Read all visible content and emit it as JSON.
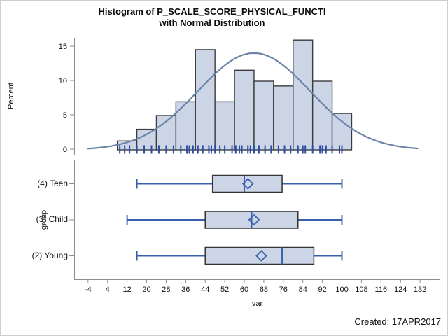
{
  "title": {
    "line1": "Histogram of P_SCALE_SCORE_PHYSICAL_FUNCTI",
    "line2": "with Normal Distribution"
  },
  "footer": {
    "created": "Created: 17APR2017"
  },
  "axis_labels": {
    "histogram_y": "Percent",
    "boxplot_y": "group",
    "shared_x": "var"
  },
  "colors": {
    "bar_fill": "#ccd5e6",
    "bar_stroke": "#3b3b3b",
    "curve": "#6b84a8",
    "box_line": "#3a5fae",
    "box_stroke": "#333333",
    "rug": "#2b4ba6",
    "panel_border": "#8e8e8e",
    "tick": "#8e8e8e",
    "text": "#111111",
    "figure_border": "#cfcfcf"
  },
  "chart_data": [
    {
      "type": "bar",
      "subtype": "histogram-with-normal-curve",
      "title": "Histogram of P_SCALE_SCORE_PHYSICAL_FUNCTI with Normal Distribution",
      "xlabel": "var",
      "ylabel": "Percent",
      "bin_width": 8,
      "bin_midpoints": [
        12,
        20,
        28,
        36,
        44,
        52,
        60,
        68,
        76,
        84,
        92,
        100
      ],
      "values_percent": [
        1.3,
        3.0,
        5.0,
        7.0,
        14.6,
        7.0,
        11.6,
        10.0,
        9.3,
        16.0,
        10.0,
        5.3
      ],
      "yticks": [
        0,
        5,
        10,
        15
      ],
      "ylim": [
        0,
        16.2
      ],
      "xticks": [
        -4,
        4,
        12,
        20,
        28,
        36,
        44,
        52,
        60,
        68,
        76,
        84,
        92,
        100,
        108,
        116,
        124,
        132
      ],
      "xlim": [
        -9.4,
        140
      ],
      "grid": false,
      "legend": "none",
      "normal_curve": {
        "mean": 64,
        "sigma": 23,
        "peak_percent": 14.1,
        "range": [
          -4,
          132
        ]
      },
      "rug_values": [
        9,
        11,
        13,
        16,
        19,
        22,
        25,
        28,
        31,
        34,
        36.5,
        37.5,
        39,
        41,
        43,
        45.5,
        46.5,
        48,
        50,
        52,
        55,
        56.5,
        58,
        59,
        61.5,
        62.5,
        64,
        66,
        68.5,
        71,
        74,
        76.5,
        79,
        82,
        84,
        85,
        88,
        91,
        92,
        93.5,
        96,
        99,
        100
      ]
    },
    {
      "type": "boxplot",
      "orientation": "horizontal",
      "ylabel": "group",
      "xlabel": "var",
      "xlim": [
        -9.4,
        140
      ],
      "groups": [
        {
          "label": "(4) Teen",
          "min": 16,
          "q1": 47,
          "median": 60,
          "mean": 61.5,
          "q3": 75.5,
          "max": 100
        },
        {
          "label": "(3) Child",
          "min": 12,
          "q1": 44,
          "median": 63,
          "mean": 64,
          "q3": 82,
          "max": 100
        },
        {
          "label": "(2) Young",
          "min": 16,
          "q1": 44,
          "median": 75.5,
          "mean": 67,
          "q3": 88.5,
          "max": 100
        }
      ]
    }
  ]
}
